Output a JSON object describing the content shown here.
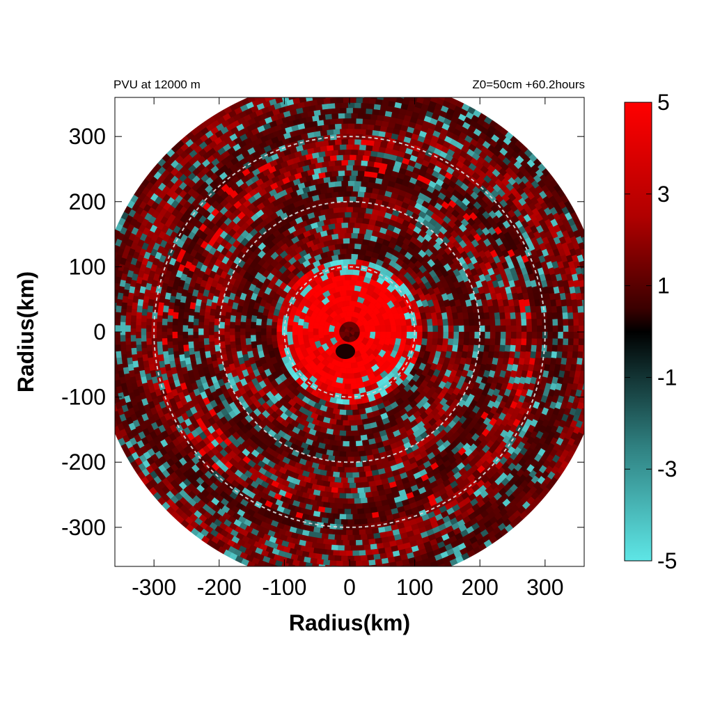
{
  "chart_data": {
    "type": "heatmap",
    "title_left": "PVU at 12000 m",
    "title_right": "Z0=50cm  +60.2hours",
    "xlabel": "Radius(km)",
    "ylabel": "Radius(km)",
    "xlim": [
      -360,
      360
    ],
    "ylim": [
      -360,
      360
    ],
    "x_ticks": [
      -300,
      -200,
      -100,
      0,
      100,
      200,
      300
    ],
    "y_ticks": [
      300,
      200,
      100,
      0,
      -100,
      -200,
      -300
    ],
    "x_tick_labels": [
      "-300",
      "-200",
      "-100",
      "0",
      "100",
      "200",
      "300"
    ],
    "y_tick_labels": [
      "300",
      "200",
      "100",
      "0",
      "-100",
      "-200",
      "-300"
    ],
    "reference_circles_km": [
      100,
      200,
      300
    ],
    "domain_radius_km": 385,
    "colorbar": {
      "range": [
        -5,
        5
      ],
      "ticks": [
        "5",
        "3",
        "1",
        "-1",
        "-3",
        "-5"
      ],
      "colors": {
        "negative": "#5ee6e6",
        "zero": "#000000",
        "positive": "#ff0000"
      }
    },
    "field_description_points": [
      {
        "r": 0,
        "value": 0.5
      },
      {
        "r": 50,
        "value": 5
      },
      {
        "r": 95,
        "value": -4
      },
      {
        "r": 150,
        "value": 0.5
      },
      {
        "r": 250,
        "value": 1.5
      },
      {
        "r": 330,
        "value": 0.8
      }
    ]
  }
}
